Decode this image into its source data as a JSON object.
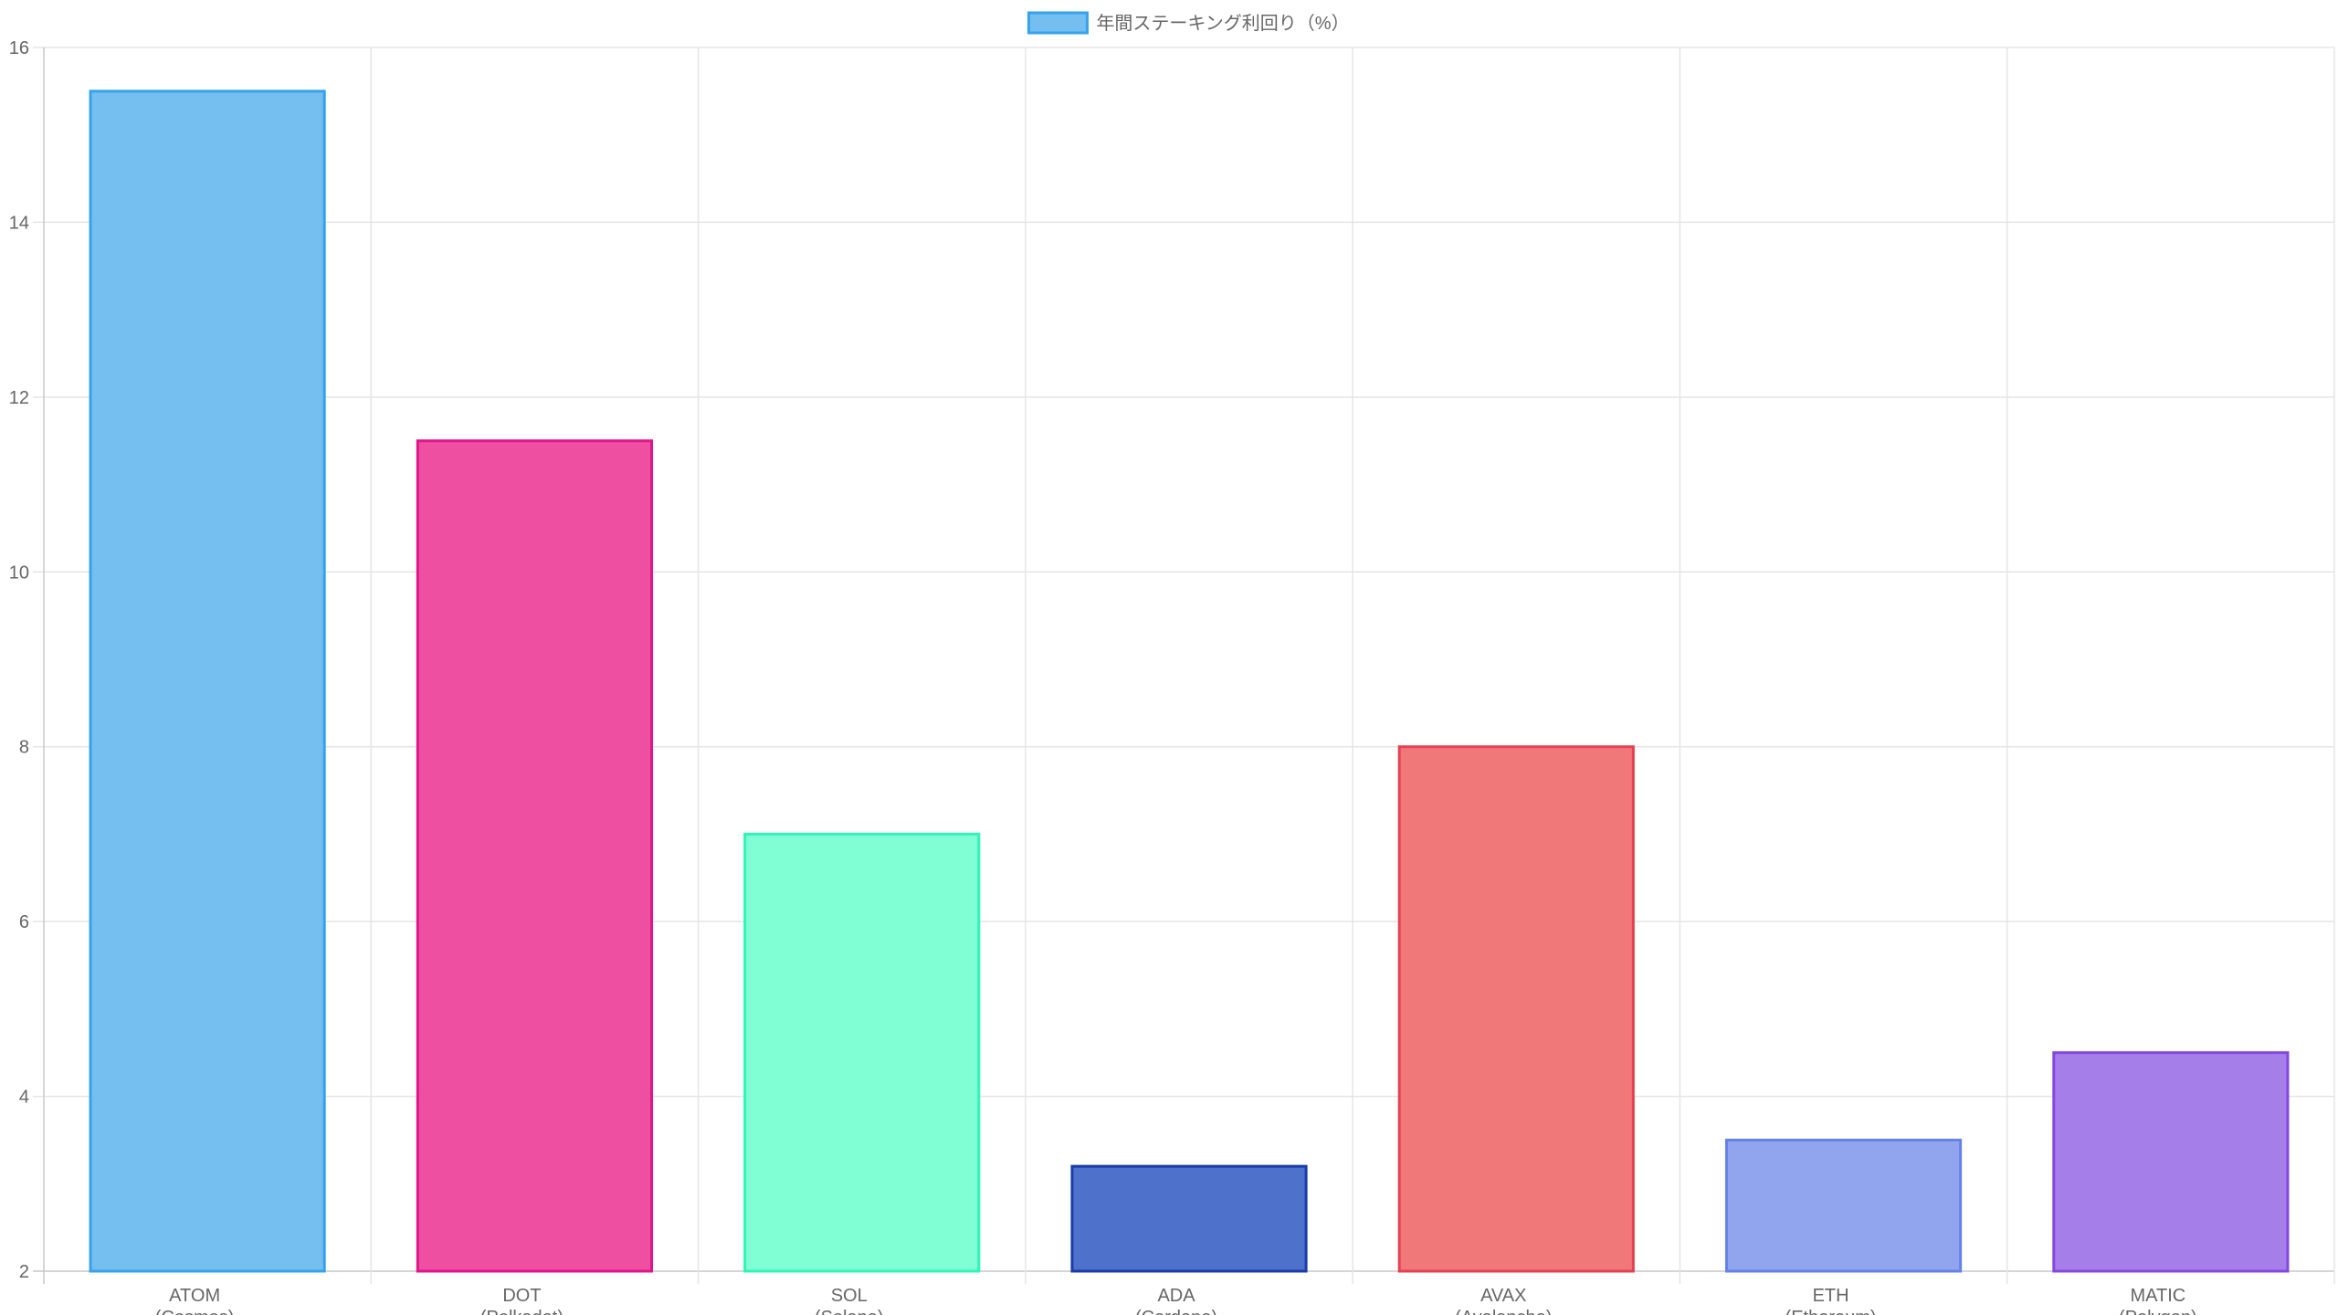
{
  "chart_data": {
    "type": "bar",
    "legend": {
      "label": "年間ステーキング利回り（%）",
      "position": "top"
    },
    "categories": [
      [
        "ATOM",
        "(Cosmos)"
      ],
      [
        "DOT",
        "(Polkadot)"
      ],
      [
        "SOL",
        "(Solana)"
      ],
      [
        "ADA",
        "(Cardano)"
      ],
      [
        "AVAX",
        "(Avalanche)"
      ],
      [
        "ETH",
        "(Ethereum)"
      ],
      [
        "MATIC",
        "(Polygon)"
      ]
    ],
    "series": [
      {
        "name": "年間ステーキング利回り（%）",
        "values": [
          15.5,
          11.5,
          7.0,
          3.2,
          8.0,
          3.5,
          4.5
        ],
        "fill_colors": [
          "#74bef0",
          "#ef4fa1",
          "#80ffd4",
          "#4e72cb",
          "#f07879",
          "#91a4ee",
          "#a67ee9"
        ],
        "border_colors": [
          "#36a2eb",
          "#e0168a",
          "#2ff5b5",
          "#1a3cab",
          "#e64152",
          "#6681e8",
          "#8348e0"
        ]
      }
    ],
    "ylim": [
      2,
      16
    ],
    "yticks": [
      2,
      4,
      6,
      8,
      10,
      12,
      14,
      16
    ],
    "grid": true,
    "legend_swatch": {
      "fill": "#74bef0",
      "border": "#36a2eb"
    },
    "colors": {
      "grid": "#e5e5e5",
      "axis": "#c8c8c8",
      "text": "#666666"
    }
  }
}
